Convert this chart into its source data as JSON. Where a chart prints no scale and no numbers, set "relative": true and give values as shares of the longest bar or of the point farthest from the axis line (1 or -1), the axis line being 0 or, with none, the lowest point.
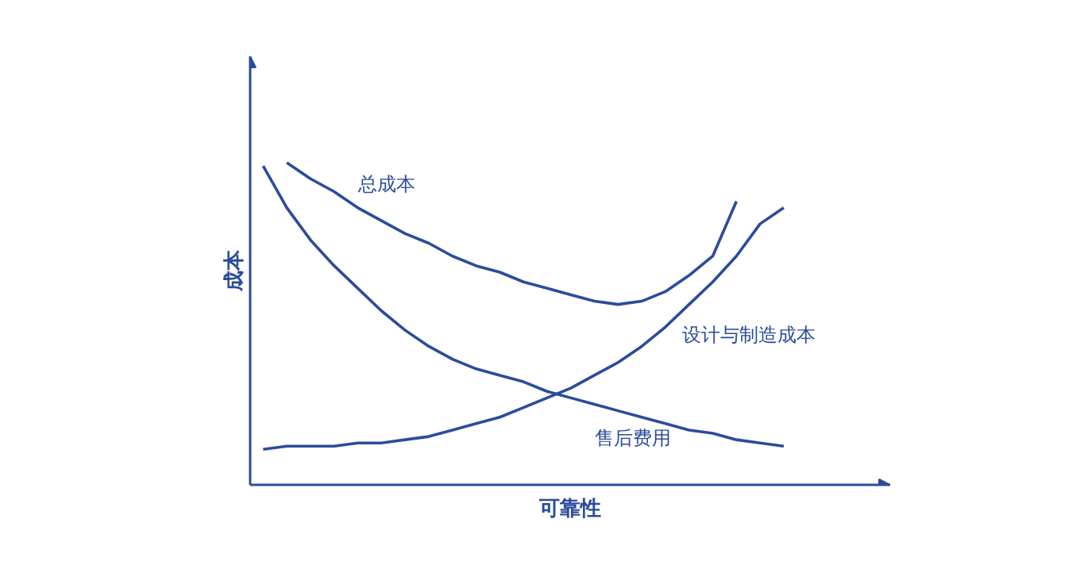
{
  "chart_data": {
    "type": "line",
    "relative": true,
    "xlabel": "可靠性",
    "ylabel": "成本",
    "categories": [
      null,
      null,
      null,
      null,
      null,
      null,
      null,
      null,
      null,
      null,
      null,
      null,
      null,
      null,
      null,
      null,
      null,
      null,
      null,
      null,
      null,
      null,
      null
    ],
    "marker": "none",
    "line_style": "solid",
    "series": [
      {
        "name": "总成本",
        "color": "#2b4c9b",
        "values": [
          null,
          1.0,
          0.95,
          0.91,
          0.86,
          0.82,
          0.78,
          0.75,
          0.71,
          0.68,
          0.66,
          0.63,
          0.61,
          0.59,
          0.57,
          0.56,
          0.57,
          0.6,
          0.65,
          0.71,
          0.88,
          null,
          null
        ]
      },
      {
        "name": "设计与制造成本",
        "color": "#2b4c9b",
        "values": [
          0.11,
          0.12,
          0.12,
          0.12,
          0.13,
          0.13,
          0.14,
          0.15,
          0.17,
          0.19,
          0.21,
          0.24,
          0.27,
          0.3,
          0.34,
          0.38,
          0.43,
          0.49,
          0.56,
          0.63,
          0.71,
          0.81,
          0.86
        ]
      },
      {
        "name": "售后费用",
        "color": "#2b4c9b",
        "values": [
          0.99,
          0.86,
          0.76,
          0.68,
          0.61,
          0.54,
          0.48,
          0.43,
          0.39,
          0.36,
          0.34,
          0.32,
          0.29,
          0.27,
          0.25,
          0.23,
          0.21,
          0.19,
          0.17,
          0.16,
          0.14,
          0.13,
          0.12
        ]
      }
    ]
  }
}
